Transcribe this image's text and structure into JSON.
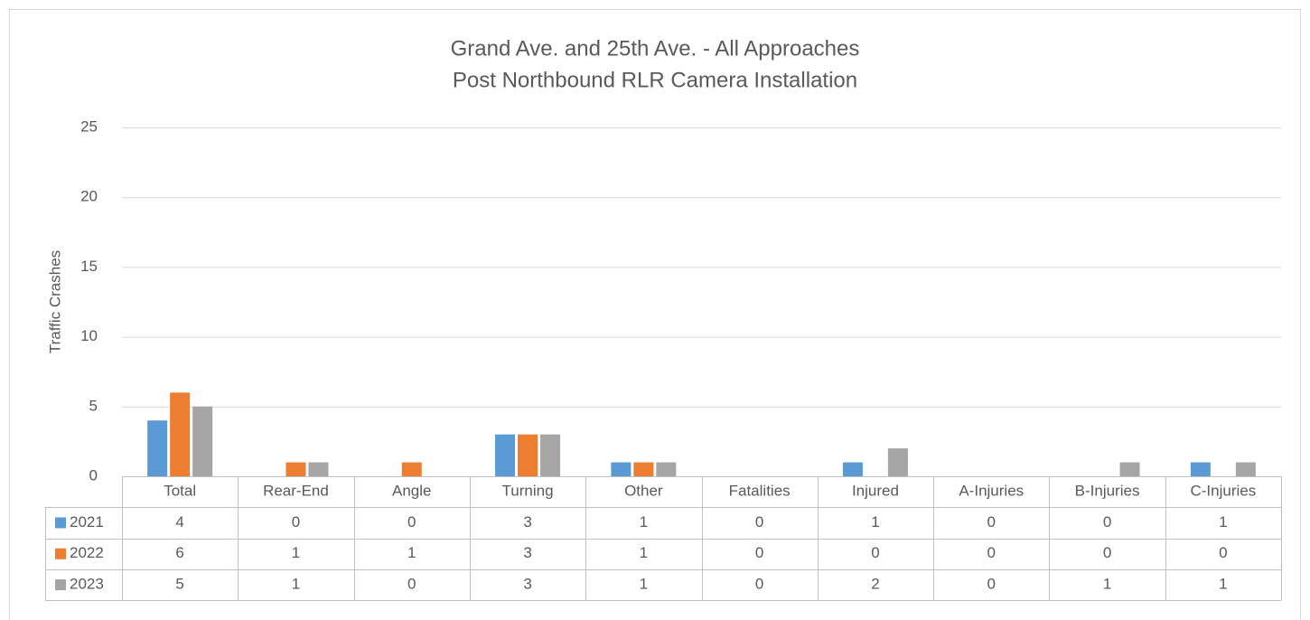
{
  "chart_data": {
    "type": "bar",
    "title": "Grand Ave. and 25th Ave. - All Approaches",
    "subtitle": "Post Northbound RLR Camera Installation",
    "y_label": "Traffic Crashes",
    "categories": [
      "Total",
      "Rear-End",
      "Angle",
      "Turning",
      "Other",
      "Fatalities",
      "Injured",
      "A-Injuries",
      "B-Injuries",
      "C-Injuries"
    ],
    "series": [
      {
        "name": "2021",
        "color": "#5b9bd5",
        "values": [
          4,
          0,
          0,
          3,
          1,
          0,
          1,
          0,
          0,
          1
        ]
      },
      {
        "name": "2022",
        "color": "#ed7d31",
        "values": [
          6,
          1,
          1,
          3,
          1,
          0,
          0,
          0,
          0,
          0
        ]
      },
      {
        "name": "2023",
        "color": "#a5a5a5",
        "values": [
          5,
          1,
          0,
          3,
          1,
          0,
          2,
          0,
          1,
          1
        ]
      }
    ],
    "ylim": [
      0,
      25
    ],
    "yticks": [
      0,
      5,
      10,
      15,
      20,
      25
    ],
    "grid": true,
    "data_table": true
  }
}
